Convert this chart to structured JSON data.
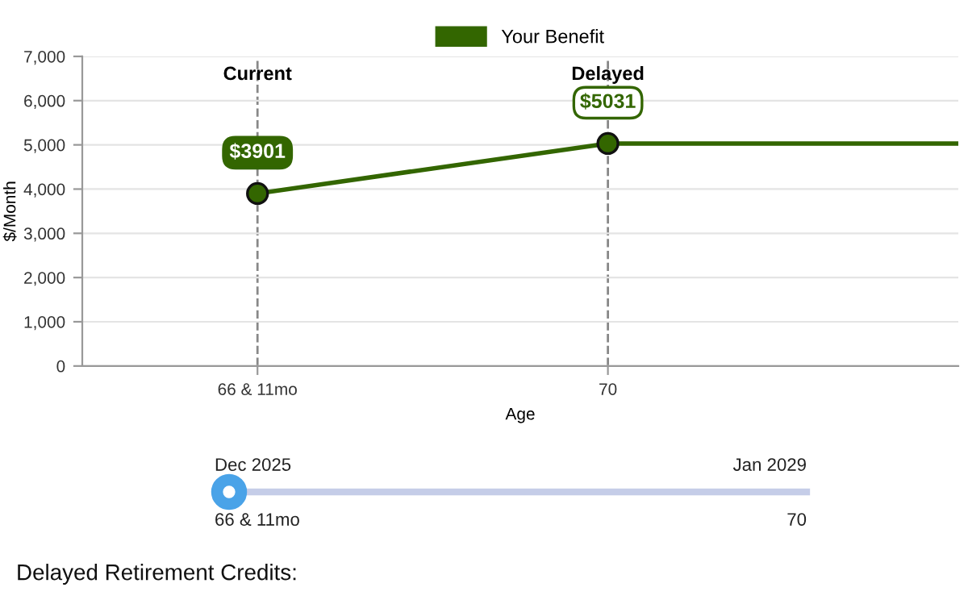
{
  "chart_data": {
    "type": "line",
    "xlabel": "Age",
    "ylabel": "$/Month",
    "series": [
      {
        "name": "Your Benefit",
        "color": "#336600",
        "values": [
          3901,
          5031,
          5031
        ],
        "value_labels": [
          "$3901",
          "$5031",
          null
        ]
      }
    ],
    "categories": [
      "66 & 11mo",
      "70",
      null
    ],
    "ylim": [
      0,
      7000
    ],
    "yticks": [
      {
        "value": 0,
        "label": "0"
      },
      {
        "value": 1000,
        "label": "1,000"
      },
      {
        "value": 2000,
        "label": "2,000"
      },
      {
        "value": 3000,
        "label": "3,000"
      },
      {
        "value": 4000,
        "label": "4,000"
      },
      {
        "value": 5000,
        "label": "5,000"
      },
      {
        "value": 6000,
        "label": "6,000"
      },
      {
        "value": 7000,
        "label": "7,000"
      }
    ],
    "annotations": [
      "Current",
      "Delayed",
      "Dec 2025",
      "Jan 2029",
      "66 & 11mo",
      "70",
      "Delayed Retirement Credits:"
    ],
    "grid": true,
    "legend": "top",
    "marker": "circle",
    "line_style": "solid"
  }
}
